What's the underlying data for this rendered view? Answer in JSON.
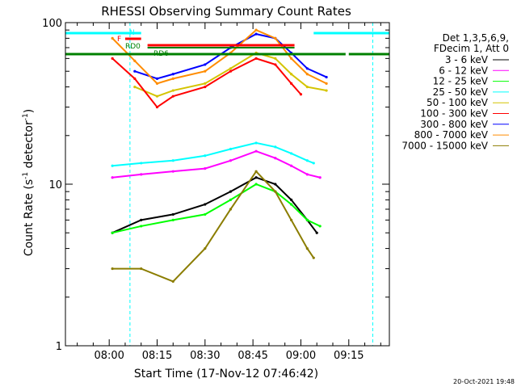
{
  "chart_data": {
    "type": "line",
    "title": "RHESSI Observing Summary Count Rates",
    "xlabel": "Start Time (17-Nov-12 07:46:42)",
    "ylabel_main": "Count Rate (s",
    "ylabel_sup1": "-1",
    "ylabel_mid": " detector",
    "ylabel_sup2": "-1",
    "ylabel_end": ")",
    "yscale": "log",
    "ylim": [
      1,
      100
    ],
    "y_ticks": [
      {
        "value": 1,
        "label": "1"
      },
      {
        "value": 10,
        "label": "10"
      },
      {
        "value": 100,
        "label": "100"
      }
    ],
    "xlim_minutes": [
      -13.7,
      27.7
    ],
    "x_ticks": [
      {
        "minutes": 0,
        "label": "08:00"
      },
      {
        "minutes": 15,
        "label": "08:15"
      },
      {
        "minutes": 30,
        "label": "08:30"
      },
      {
        "minutes": 45,
        "label": "08:45"
      },
      {
        "minutes": 60,
        "label": "09:00"
      },
      {
        "minutes": 75,
        "label": "09:15"
      }
    ],
    "legend_header": [
      "Det 1,3,5,6,9,",
      "FDecim 1, Att 0"
    ],
    "series": [
      {
        "name": "3 - 6 keV",
        "color": "#000000",
        "x": [
          1,
          10,
          20,
          30,
          38,
          46,
          52,
          57,
          62,
          65
        ],
        "y": [
          5,
          6,
          6.5,
          7.5,
          9,
          11,
          10,
          8,
          6,
          5
        ]
      },
      {
        "name": "6 - 12 keV",
        "color": "#ff00ff",
        "x": [
          1,
          10,
          20,
          30,
          38,
          46,
          52,
          57,
          62,
          66
        ],
        "y": [
          11,
          11.5,
          12,
          12.5,
          14,
          16,
          14.5,
          13,
          11.5,
          11
        ]
      },
      {
        "name": "12 - 25 keV",
        "color": "#00ff00",
        "x": [
          1,
          10,
          20,
          30,
          38,
          46,
          52,
          57,
          62,
          66
        ],
        "y": [
          5,
          5.5,
          6,
          6.5,
          8,
          10,
          9,
          7.5,
          6,
          5.5
        ]
      },
      {
        "name": "25 - 50 keV",
        "color": "#00ffff",
        "x": [
          1,
          10,
          20,
          30,
          38,
          46,
          52,
          57,
          62,
          64
        ],
        "y": [
          13,
          13.5,
          14,
          15,
          16.5,
          18,
          17,
          15.5,
          14,
          13.5
        ]
      },
      {
        "name": "50 - 100 keV",
        "color": "#d4c400",
        "x": [
          8,
          15,
          20,
          30,
          38,
          46,
          52,
          57,
          62,
          68
        ],
        "y": [
          40,
          35,
          38,
          42,
          52,
          65,
          60,
          48,
          40,
          38
        ]
      },
      {
        "name": "100 - 300 keV",
        "color": "#ff0000",
        "x": [
          1,
          8,
          15,
          20,
          30,
          38,
          46,
          52,
          57,
          60
        ],
        "y": [
          60,
          45,
          30,
          35,
          40,
          50,
          60,
          55,
          42,
          36
        ]
      },
      {
        "name": "300 - 800 keV",
        "color": "#0000ff",
        "x": [
          8,
          15,
          20,
          30,
          38,
          46,
          52,
          57,
          62,
          68
        ],
        "y": [
          50,
          45,
          48,
          55,
          70,
          85,
          80,
          65,
          52,
          46
        ]
      },
      {
        "name": "800 - 7000 keV",
        "color": "#ff8c00",
        "x": [
          1,
          8,
          15,
          20,
          30,
          38,
          46,
          52,
          57,
          62,
          68
        ],
        "y": [
          80,
          58,
          42,
          45,
          50,
          65,
          90,
          80,
          60,
          48,
          42
        ]
      },
      {
        "name": "7000 - 15000 keV",
        "color": "#8b7d00",
        "x": [
          1,
          10,
          20,
          30,
          38,
          46,
          52,
          57,
          62,
          64
        ],
        "y": [
          3,
          3,
          2.5,
          4,
          7,
          12,
          9,
          6,
          4,
          3.5
        ]
      }
    ],
    "flags": [
      {
        "label": "N",
        "color": "#00ffff"
      },
      {
        "label": "F",
        "color": "#ff0000"
      },
      {
        "label": "RD0",
        "color": "#008000"
      },
      {
        "label": "RD6",
        "color": "#008000"
      }
    ],
    "timestamp": "20-Oct-2021 19:48"
  }
}
